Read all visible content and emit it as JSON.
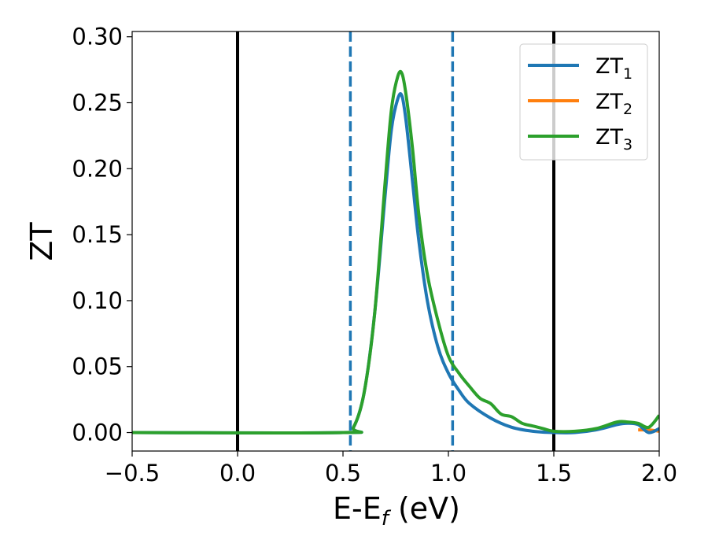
{
  "chart_data": {
    "type": "line",
    "xlabel_main": "E-E",
    "xlabel_sub": "f",
    "xlabel_unit": " (eV)",
    "ylabel": "ZT",
    "xlim": [
      -0.5,
      2.0
    ],
    "ylim": [
      -0.014,
      0.304
    ],
    "xticks": [
      -0.5,
      0.0,
      0.5,
      1.0,
      1.5,
      2.0
    ],
    "xtick_labels": [
      "−0.5",
      "0.0",
      "0.5",
      "1.0",
      "1.5",
      "2.0"
    ],
    "yticks": [
      0.0,
      0.05,
      0.1,
      0.15,
      0.2,
      0.25,
      0.3
    ],
    "ytick_labels": [
      "0.00",
      "0.05",
      "0.10",
      "0.15",
      "0.20",
      "0.25",
      "0.30"
    ],
    "grid": false,
    "legend_position": "top-right",
    "vertical_lines": [
      {
        "x": 0.0,
        "style": "solid",
        "color": "#000000"
      },
      {
        "x": 1.5,
        "style": "solid",
        "color": "#000000"
      },
      {
        "x": 0.535,
        "style": "dashed",
        "color": "#1f77b4"
      },
      {
        "x": 1.02,
        "style": "dashed",
        "color": "#1f77b4"
      }
    ],
    "series": [
      {
        "name": "ZT",
        "subscript": "1",
        "color": "#1f77b4",
        "x": [
          -0.5,
          0.5,
          0.55,
          0.6,
          0.65,
          0.7,
          0.73,
          0.76,
          0.78,
          0.8,
          0.83,
          0.86,
          0.9,
          0.95,
          1.0,
          1.05,
          1.1,
          1.2,
          1.3,
          1.4,
          1.5,
          1.6,
          1.7,
          1.8,
          1.85,
          1.9,
          1.95,
          2.0
        ],
        "y": [
          0.0,
          0.0,
          0.004,
          0.03,
          0.09,
          0.18,
          0.23,
          0.253,
          0.255,
          0.235,
          0.19,
          0.145,
          0.1,
          0.065,
          0.045,
          0.032,
          0.022,
          0.011,
          0.004,
          0.001,
          0.0,
          0.0,
          0.002,
          0.006,
          0.007,
          0.006,
          0.0,
          0.003
        ]
      },
      {
        "name": "ZT",
        "subscript": "2",
        "color": "#ff7f0e",
        "x": [
          1.9,
          1.95,
          2.0
        ],
        "y": [
          0.002,
          0.002,
          0.001
        ]
      },
      {
        "name": "ZT",
        "subscript": "3",
        "color": "#2ca02c",
        "x": [
          -0.5,
          0.5,
          0.55,
          0.6,
          0.65,
          0.7,
          0.73,
          0.76,
          0.78,
          0.8,
          0.83,
          0.86,
          0.9,
          0.95,
          1.0,
          1.05,
          1.1,
          1.15,
          1.2,
          1.25,
          1.3,
          1.35,
          1.4,
          1.45,
          1.5,
          1.6,
          1.7,
          1.8,
          1.85,
          1.9,
          1.95,
          2.0
        ],
        "y": [
          0.0,
          0.0,
          0.004,
          0.03,
          0.09,
          0.19,
          0.245,
          0.27,
          0.272,
          0.255,
          0.215,
          0.165,
          0.12,
          0.085,
          0.058,
          0.045,
          0.035,
          0.026,
          0.022,
          0.014,
          0.012,
          0.007,
          0.005,
          0.003,
          0.001,
          0.001,
          0.003,
          0.008,
          0.008,
          0.007,
          0.004,
          0.013
        ]
      }
    ]
  }
}
